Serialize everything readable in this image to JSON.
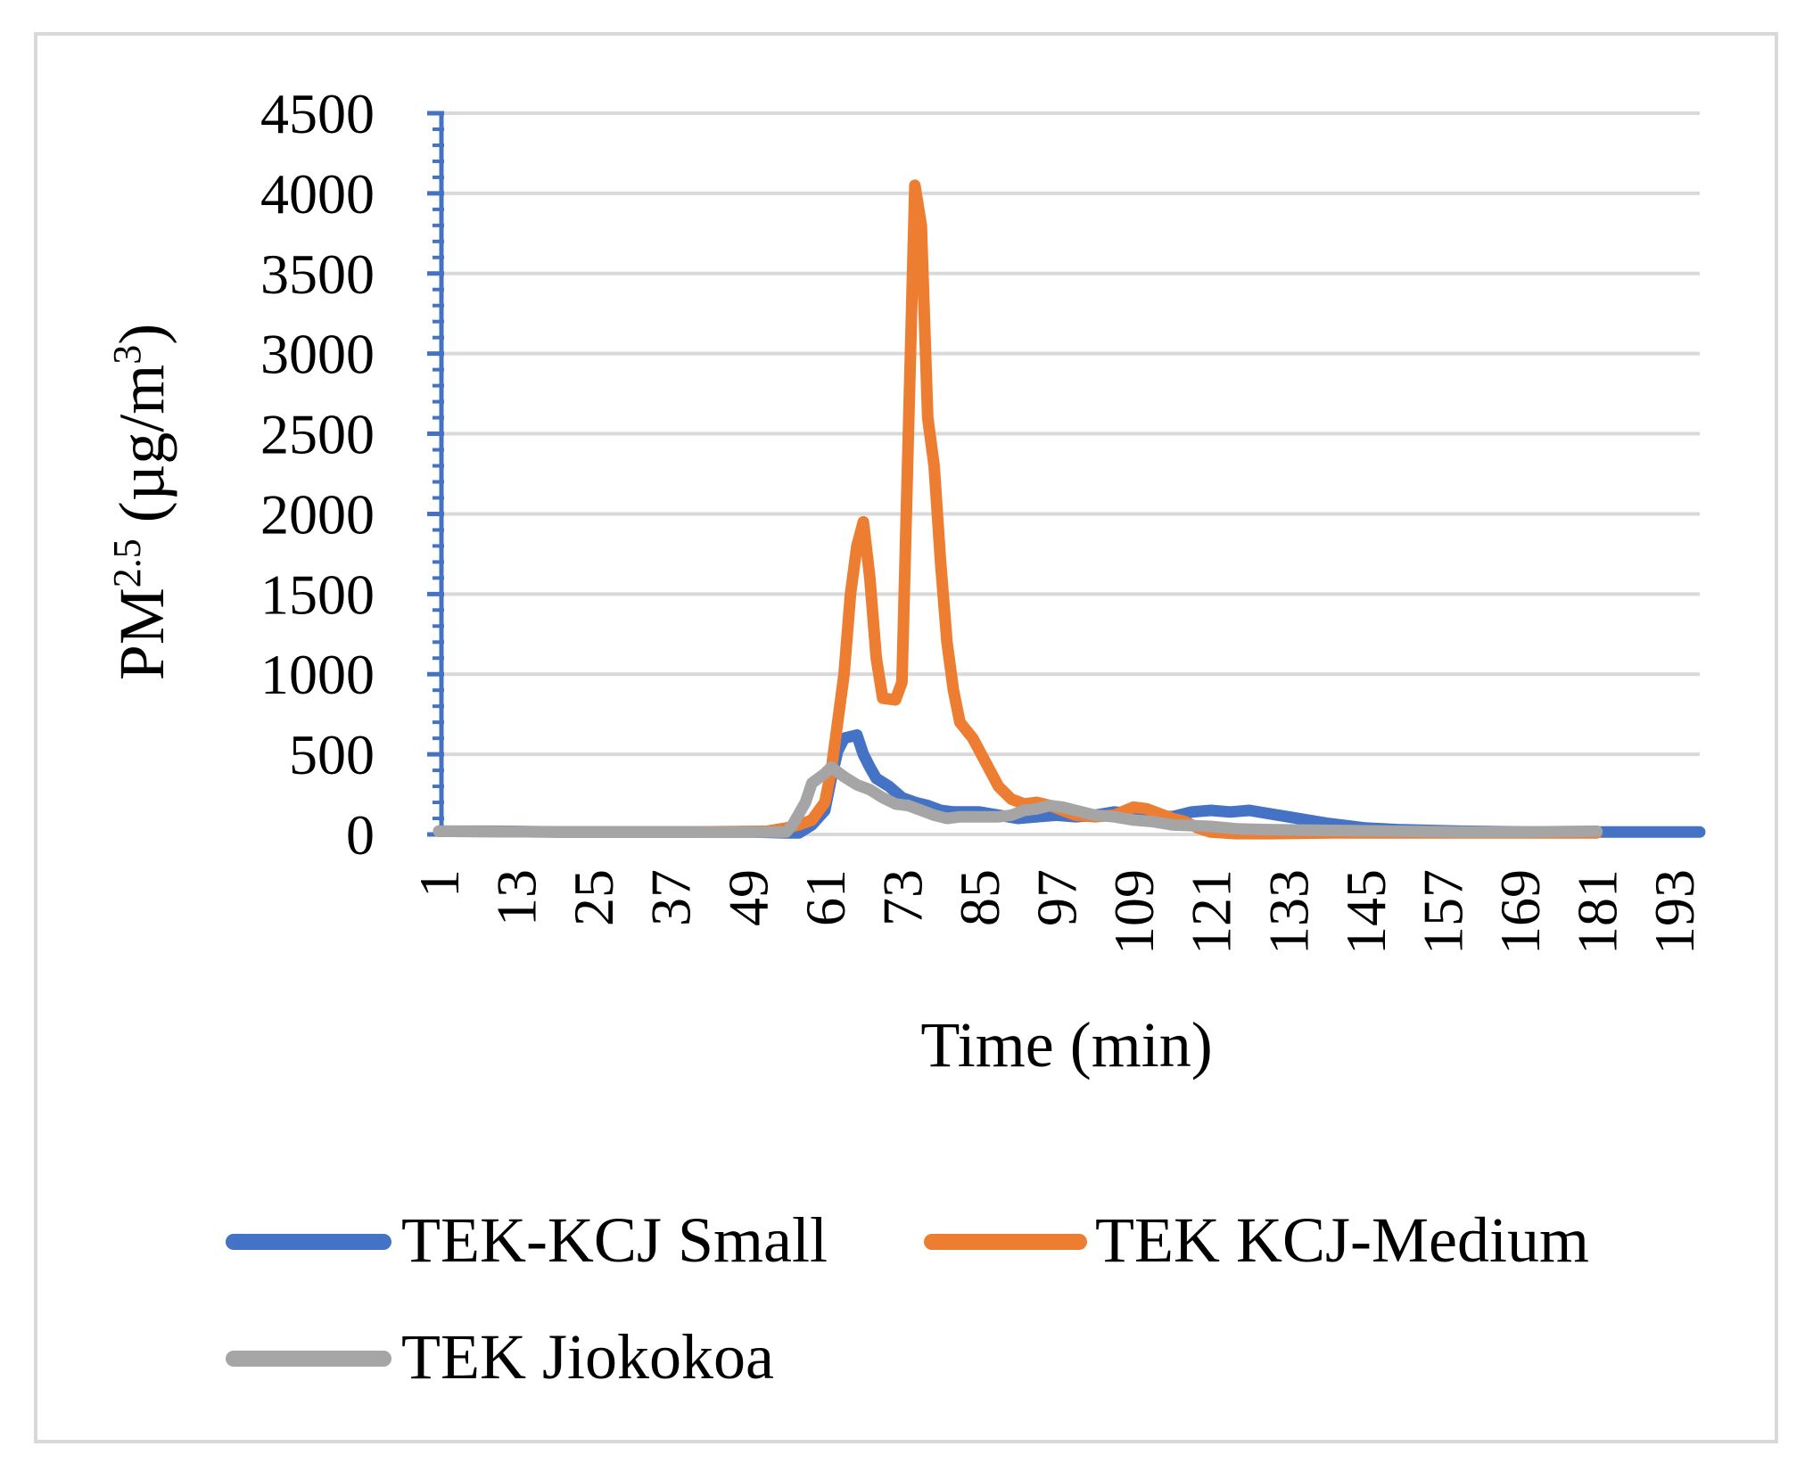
{
  "chart_data": {
    "type": "line",
    "title": "",
    "xlabel": "Time (min)",
    "ylabel": {
      "base": "PM",
      "sup": "2.5",
      "unit_pre": " (µg/m",
      "unit_sup": "3",
      "unit_post": ")"
    },
    "ylim": [
      0,
      4500
    ],
    "y_ticks": [
      "0",
      "500",
      "1000",
      "1500",
      "2000",
      "2500",
      "3000",
      "3500",
      "4000",
      "4500"
    ],
    "x_range": [
      1,
      197
    ],
    "x_ticks": [
      "1",
      "13",
      "25",
      "37",
      "49",
      "61",
      "73",
      "85",
      "97",
      "109",
      "121",
      "133",
      "145",
      "157",
      "169",
      "181",
      "193"
    ],
    "grid": true,
    "legend_position": "bottom",
    "series": [
      {
        "name": "TEK-KCJ Small",
        "color": "#4472C4",
        "points": [
          [
            1,
            20
          ],
          [
            10,
            20
          ],
          [
            20,
            15
          ],
          [
            30,
            15
          ],
          [
            40,
            15
          ],
          [
            50,
            15
          ],
          [
            55,
            10
          ],
          [
            57,
            10
          ],
          [
            59,
            60
          ],
          [
            61,
            150
          ],
          [
            62,
            350
          ],
          [
            63,
            520
          ],
          [
            64,
            600
          ],
          [
            66,
            620
          ],
          [
            67,
            500
          ],
          [
            68,
            420
          ],
          [
            69,
            350
          ],
          [
            71,
            300
          ],
          [
            73,
            230
          ],
          [
            75,
            200
          ],
          [
            77,
            180
          ],
          [
            79,
            150
          ],
          [
            81,
            140
          ],
          [
            85,
            140
          ],
          [
            88,
            120
          ],
          [
            91,
            100
          ],
          [
            94,
            110
          ],
          [
            97,
            120
          ],
          [
            100,
            110
          ],
          [
            103,
            120
          ],
          [
            106,
            140
          ],
          [
            109,
            130
          ],
          [
            112,
            120
          ],
          [
            115,
            110
          ],
          [
            118,
            140
          ],
          [
            121,
            150
          ],
          [
            124,
            140
          ],
          [
            127,
            150
          ],
          [
            130,
            130
          ],
          [
            133,
            110
          ],
          [
            136,
            90
          ],
          [
            139,
            70
          ],
          [
            142,
            55
          ],
          [
            145,
            40
          ],
          [
            150,
            30
          ],
          [
            160,
            20
          ],
          [
            170,
            15
          ],
          [
            180,
            15
          ],
          [
            190,
            15
          ],
          [
            197,
            15
          ]
        ]
      },
      {
        "name": "TEK KCJ-Medium",
        "color": "#ED7D31",
        "points": [
          [
            1,
            20
          ],
          [
            20,
            15
          ],
          [
            40,
            15
          ],
          [
            52,
            20
          ],
          [
            55,
            40
          ],
          [
            57,
            60
          ],
          [
            59,
            90
          ],
          [
            61,
            200
          ],
          [
            62,
            400
          ],
          [
            63,
            700
          ],
          [
            64,
            1000
          ],
          [
            65,
            1500
          ],
          [
            66,
            1800
          ],
          [
            67,
            1950
          ],
          [
            68,
            1600
          ],
          [
            69,
            1100
          ],
          [
            70,
            850
          ],
          [
            72,
            840
          ],
          [
            73,
            950
          ],
          [
            74,
            2500
          ],
          [
            75,
            4050
          ],
          [
            76,
            3800
          ],
          [
            77,
            2600
          ],
          [
            78,
            2300
          ],
          [
            79,
            1700
          ],
          [
            80,
            1200
          ],
          [
            81,
            900
          ],
          [
            82,
            700
          ],
          [
            84,
            600
          ],
          [
            86,
            450
          ],
          [
            88,
            300
          ],
          [
            90,
            220
          ],
          [
            92,
            190
          ],
          [
            94,
            200
          ],
          [
            96,
            180
          ],
          [
            98,
            150
          ],
          [
            100,
            120
          ],
          [
            103,
            110
          ],
          [
            106,
            120
          ],
          [
            109,
            170
          ],
          [
            111,
            160
          ],
          [
            113,
            130
          ],
          [
            115,
            100
          ],
          [
            117,
            80
          ],
          [
            119,
            40
          ],
          [
            121,
            15
          ],
          [
            125,
            5
          ],
          [
            130,
            5
          ],
          [
            140,
            10
          ],
          [
            150,
            10
          ],
          [
            160,
            10
          ],
          [
            170,
            10
          ],
          [
            181,
            10
          ]
        ]
      },
      {
        "name": "TEK Jiokokoa",
        "color": "#A5A5A5",
        "points": [
          [
            1,
            20
          ],
          [
            20,
            15
          ],
          [
            40,
            15
          ],
          [
            52,
            15
          ],
          [
            55,
            15
          ],
          [
            56,
            60
          ],
          [
            58,
            200
          ],
          [
            59,
            320
          ],
          [
            61,
            380
          ],
          [
            62,
            420
          ],
          [
            64,
            360
          ],
          [
            66,
            310
          ],
          [
            68,
            280
          ],
          [
            70,
            230
          ],
          [
            72,
            190
          ],
          [
            74,
            180
          ],
          [
            76,
            150
          ],
          [
            78,
            120
          ],
          [
            80,
            100
          ],
          [
            82,
            110
          ],
          [
            85,
            110
          ],
          [
            88,
            110
          ],
          [
            90,
            120
          ],
          [
            92,
            150
          ],
          [
            94,
            160
          ],
          [
            96,
            180
          ],
          [
            98,
            170
          ],
          [
            100,
            150
          ],
          [
            103,
            120
          ],
          [
            106,
            110
          ],
          [
            109,
            90
          ],
          [
            112,
            80
          ],
          [
            115,
            60
          ],
          [
            118,
            55
          ],
          [
            121,
            50
          ],
          [
            125,
            35
          ],
          [
            130,
            30
          ],
          [
            140,
            25
          ],
          [
            150,
            20
          ],
          [
            160,
            15
          ],
          [
            170,
            15
          ],
          [
            181,
            20
          ]
        ]
      }
    ]
  }
}
